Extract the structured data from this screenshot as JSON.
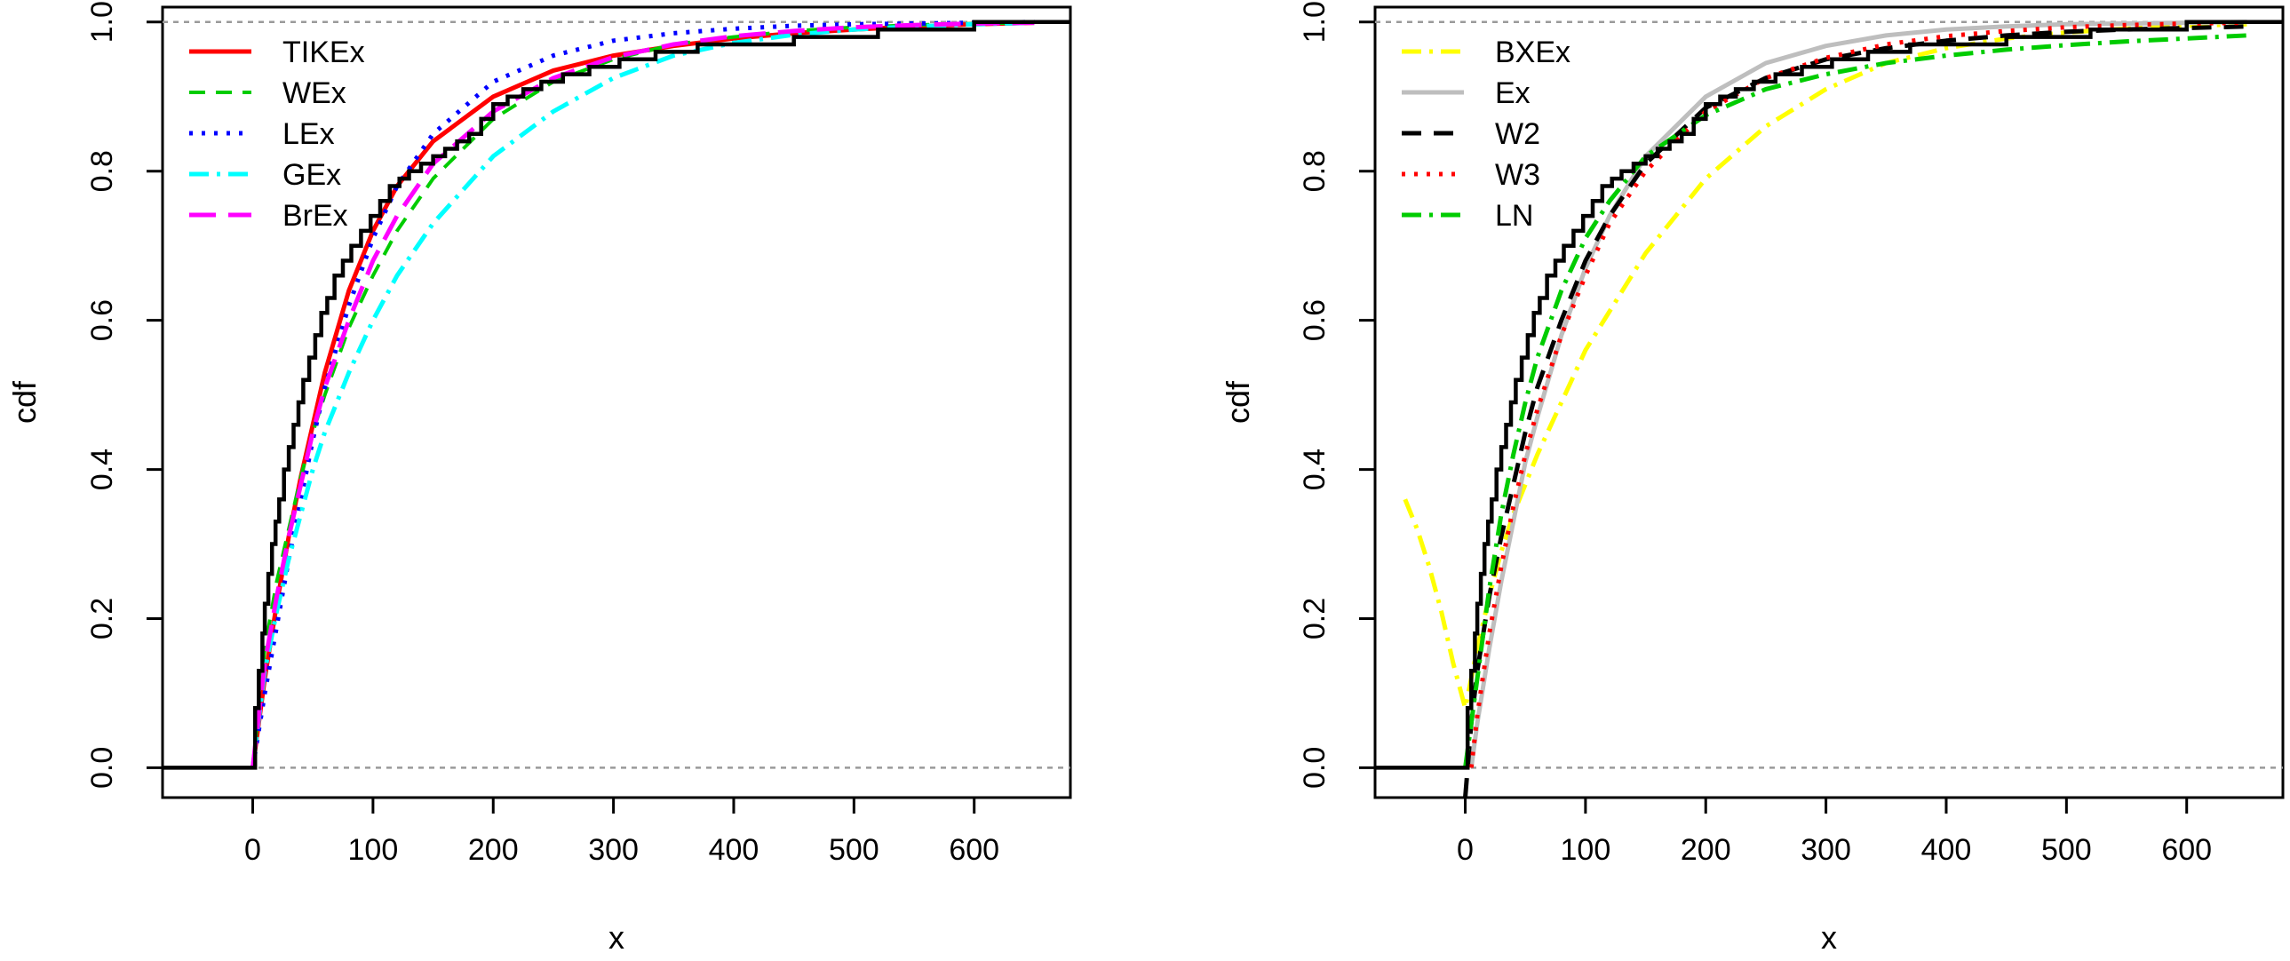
{
  "chart_data": [
    {
      "type": "line",
      "title": "",
      "xlabel": "x",
      "ylabel": "cdf",
      "xlim": [
        -75,
        680
      ],
      "ylim": [
        -0.04,
        1.02
      ],
      "xticks": [
        0,
        100,
        200,
        300,
        400,
        500,
        600
      ],
      "yticks": [
        0.0,
        0.2,
        0.4,
        0.6,
        0.8,
        1.0
      ],
      "xtick_labels": [
        "0",
        "100",
        "200",
        "300",
        "400",
        "500",
        "600"
      ],
      "ytick_labels": [
        "0.0",
        "0.2",
        "0.4",
        "0.6",
        "0.8",
        "1.0"
      ],
      "legend_position": "top-left",
      "empirical": {
        "name": "empirical cdf",
        "color": "#000000",
        "x": [
          -75,
          0,
          2,
          5,
          8,
          10,
          13,
          16,
          19,
          22,
          26,
          30,
          34,
          38,
          42,
          47,
          52,
          57,
          62,
          68,
          75,
          82,
          90,
          98,
          106,
          114,
          122,
          130,
          140,
          150,
          160,
          170,
          180,
          190,
          200,
          212,
          225,
          240,
          258,
          280,
          305,
          335,
          370,
          410,
          450,
          490,
          520,
          560,
          600,
          650,
          680
        ],
        "y": [
          0,
          0,
          0.08,
          0.13,
          0.18,
          0.22,
          0.26,
          0.3,
          0.33,
          0.36,
          0.4,
          0.43,
          0.46,
          0.49,
          0.52,
          0.55,
          0.58,
          0.61,
          0.63,
          0.66,
          0.68,
          0.7,
          0.72,
          0.74,
          0.76,
          0.78,
          0.79,
          0.8,
          0.81,
          0.82,
          0.83,
          0.84,
          0.85,
          0.87,
          0.89,
          0.9,
          0.91,
          0.92,
          0.93,
          0.94,
          0.95,
          0.96,
          0.97,
          0.97,
          0.98,
          0.98,
          0.99,
          0.99,
          1.0,
          1.0,
          1.0
        ]
      },
      "series": [
        {
          "name": "TIKEx",
          "color": "#FF0000",
          "dash": "solid",
          "width": 5,
          "x": [
            0,
            10,
            20,
            30,
            40,
            50,
            60,
            80,
            100,
            120,
            150,
            200,
            250,
            300,
            350,
            400,
            450,
            500,
            550,
            600,
            650
          ],
          "y": [
            0.0,
            0.12,
            0.22,
            0.31,
            0.39,
            0.46,
            0.53,
            0.64,
            0.72,
            0.78,
            0.84,
            0.9,
            0.935,
            0.955,
            0.968,
            0.978,
            0.985,
            0.99,
            0.994,
            0.997,
            0.999
          ]
        },
        {
          "name": "WEx",
          "color": "#00CC00",
          "dash": "18,12",
          "width": 4,
          "x": [
            0,
            10,
            20,
            30,
            40,
            50,
            60,
            80,
            100,
            120,
            150,
            200,
            250,
            300,
            350,
            400,
            450,
            500,
            550,
            600,
            650
          ],
          "y": [
            0.0,
            0.16,
            0.25,
            0.32,
            0.39,
            0.45,
            0.5,
            0.59,
            0.66,
            0.72,
            0.79,
            0.87,
            0.92,
            0.95,
            0.97,
            0.98,
            0.988,
            0.993,
            0.996,
            0.998,
            0.999
          ]
        },
        {
          "name": "LEx",
          "color": "#0000FF",
          "dash": "4,10",
          "width": 5,
          "x": [
            0,
            10,
            20,
            30,
            40,
            50,
            60,
            80,
            100,
            120,
            150,
            200,
            250,
            300,
            350,
            400,
            450,
            500,
            550,
            600,
            650
          ],
          "y": [
            0.0,
            0.1,
            0.19,
            0.28,
            0.36,
            0.44,
            0.51,
            0.62,
            0.71,
            0.78,
            0.85,
            0.92,
            0.955,
            0.975,
            0.985,
            0.991,
            0.995,
            0.997,
            0.998,
            0.999,
            1.0
          ]
        },
        {
          "name": "GEx",
          "color": "#00FFFF",
          "dash": "22,9,4,9",
          "width": 5,
          "x": [
            0,
            10,
            20,
            30,
            40,
            50,
            60,
            80,
            100,
            120,
            150,
            200,
            250,
            300,
            350,
            400,
            450,
            500,
            550,
            600,
            650
          ],
          "y": [
            0.0,
            0.13,
            0.21,
            0.28,
            0.34,
            0.4,
            0.45,
            0.53,
            0.6,
            0.66,
            0.73,
            0.82,
            0.88,
            0.925,
            0.955,
            0.972,
            0.983,
            0.99,
            0.994,
            0.997,
            0.999
          ]
        },
        {
          "name": "BrEx",
          "color": "#FF00FF",
          "dash": "30,14",
          "width": 5,
          "x": [
            0,
            10,
            20,
            30,
            40,
            50,
            60,
            80,
            100,
            120,
            150,
            200,
            250,
            300,
            350,
            400,
            450,
            500,
            550,
            600,
            650
          ],
          "y": [
            0.0,
            0.14,
            0.23,
            0.31,
            0.38,
            0.45,
            0.51,
            0.6,
            0.68,
            0.74,
            0.81,
            0.88,
            0.925,
            0.953,
            0.97,
            0.981,
            0.988,
            0.993,
            0.996,
            0.998,
            0.999
          ]
        }
      ],
      "legend": [
        "TIKEx",
        "WEx",
        "LEx",
        "GEx",
        "BrEx"
      ]
    },
    {
      "type": "line",
      "title": "",
      "xlabel": "x",
      "ylabel": "cdf",
      "xlim": [
        -75,
        680
      ],
      "ylim": [
        -0.04,
        1.02
      ],
      "xticks": [
        0,
        100,
        200,
        300,
        400,
        500,
        600
      ],
      "yticks": [
        0.0,
        0.2,
        0.4,
        0.6,
        0.8,
        1.0
      ],
      "xtick_labels": [
        "0",
        "100",
        "200",
        "300",
        "400",
        "500",
        "600"
      ],
      "ytick_labels": [
        "0.0",
        "0.2",
        "0.4",
        "0.6",
        "0.8",
        "1.0"
      ],
      "legend_position": "top-left",
      "empirical": {
        "name": "empirical cdf",
        "color": "#000000",
        "x": [
          -75,
          0,
          2,
          5,
          8,
          10,
          13,
          16,
          19,
          22,
          26,
          30,
          34,
          38,
          42,
          47,
          52,
          57,
          62,
          68,
          75,
          82,
          90,
          98,
          106,
          114,
          122,
          130,
          140,
          150,
          160,
          170,
          180,
          190,
          200,
          212,
          225,
          240,
          258,
          280,
          305,
          335,
          370,
          410,
          450,
          490,
          520,
          560,
          600,
          650,
          680
        ],
        "y": [
          0,
          0,
          0.08,
          0.13,
          0.18,
          0.22,
          0.26,
          0.3,
          0.33,
          0.36,
          0.4,
          0.43,
          0.46,
          0.49,
          0.52,
          0.55,
          0.58,
          0.61,
          0.63,
          0.66,
          0.68,
          0.7,
          0.72,
          0.74,
          0.76,
          0.78,
          0.79,
          0.8,
          0.81,
          0.82,
          0.83,
          0.84,
          0.85,
          0.87,
          0.89,
          0.9,
          0.91,
          0.92,
          0.93,
          0.94,
          0.95,
          0.96,
          0.97,
          0.97,
          0.98,
          0.98,
          0.99,
          0.99,
          1.0,
          1.0,
          1.0
        ]
      },
      "series": [
        {
          "name": "BXEx",
          "color": "#FFFF00",
          "dash": "22,9,4,9",
          "width": 5,
          "x": [
            -50,
            -40,
            -30,
            -20,
            -10,
            0,
            10,
            20,
            30,
            40,
            50,
            60,
            80,
            100,
            150,
            200,
            250,
            300,
            350,
            400,
            450,
            500,
            550,
            600,
            650
          ],
          "y": [
            0.36,
            0.32,
            0.27,
            0.21,
            0.14,
            0.08,
            0.16,
            0.23,
            0.29,
            0.34,
            0.38,
            0.42,
            0.49,
            0.56,
            0.69,
            0.79,
            0.86,
            0.91,
            0.945,
            0.965,
            0.978,
            0.986,
            0.991,
            0.995,
            0.997
          ]
        },
        {
          "name": "Ex",
          "color": "#BEBEBE",
          "dash": "solid",
          "width": 5,
          "x": [
            5,
            10,
            20,
            30,
            40,
            50,
            60,
            80,
            100,
            120,
            150,
            200,
            250,
            300,
            350,
            400,
            450,
            500,
            550,
            600,
            650
          ],
          "y": [
            0.0,
            0.06,
            0.16,
            0.25,
            0.33,
            0.41,
            0.47,
            0.58,
            0.67,
            0.74,
            0.82,
            0.9,
            0.945,
            0.968,
            0.982,
            0.99,
            0.994,
            0.997,
            0.998,
            0.999,
            1.0
          ]
        },
        {
          "name": "W2",
          "color": "#000000",
          "dash": "22,14",
          "width": 5,
          "x": [
            0,
            5,
            10,
            20,
            30,
            40,
            50,
            60,
            80,
            100,
            120,
            150,
            200,
            250,
            300,
            350,
            400,
            450,
            500,
            550,
            600,
            650
          ],
          "y": [
            -0.04,
            0.06,
            0.13,
            0.23,
            0.31,
            0.38,
            0.45,
            0.51,
            0.6,
            0.68,
            0.74,
            0.81,
            0.885,
            0.925,
            0.95,
            0.965,
            0.975,
            0.982,
            0.987,
            0.99,
            0.992,
            0.994
          ]
        },
        {
          "name": "W3",
          "color": "#FF0000",
          "dash": "4,10",
          "width": 5,
          "x": [
            5,
            10,
            20,
            30,
            40,
            50,
            60,
            80,
            100,
            120,
            150,
            200,
            250,
            300,
            350,
            400,
            450,
            500,
            550,
            600,
            650
          ],
          "y": [
            0.0,
            0.07,
            0.18,
            0.27,
            0.35,
            0.42,
            0.48,
            0.58,
            0.66,
            0.73,
            0.8,
            0.88,
            0.925,
            0.952,
            0.97,
            0.981,
            0.988,
            0.993,
            0.996,
            0.998,
            0.999
          ]
        },
        {
          "name": "LN",
          "color": "#00CC00",
          "dash": "22,9,4,9",
          "width": 5,
          "x": [
            0,
            5,
            10,
            20,
            30,
            40,
            50,
            60,
            80,
            100,
            120,
            150,
            200,
            250,
            300,
            350,
            400,
            450,
            500,
            550,
            600,
            650
          ],
          "y": [
            0.0,
            0.06,
            0.12,
            0.24,
            0.34,
            0.42,
            0.49,
            0.55,
            0.64,
            0.71,
            0.76,
            0.82,
            0.875,
            0.91,
            0.93,
            0.945,
            0.955,
            0.963,
            0.969,
            0.974,
            0.978,
            0.982
          ]
        }
      ],
      "legend": [
        "BXEx",
        "Ex",
        "W2",
        "W3",
        "LN"
      ]
    }
  ]
}
